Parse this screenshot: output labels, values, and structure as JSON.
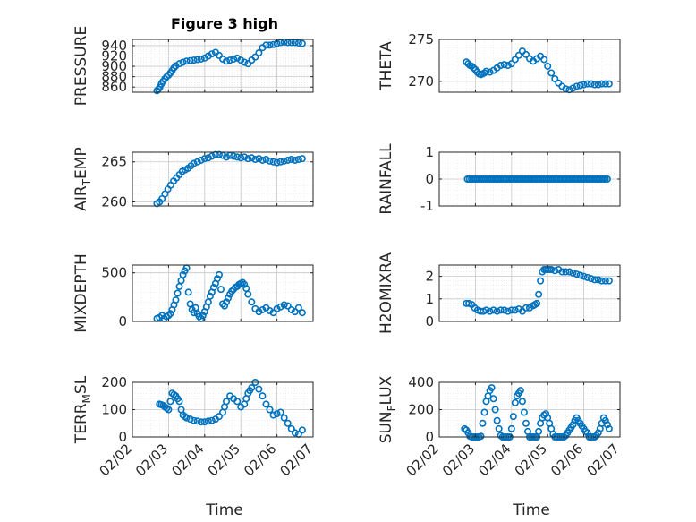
{
  "figure": {
    "title": "Figure 3 high",
    "xlabel": "Time"
  },
  "colors": {
    "marker": "#0072BD",
    "axis": "#262626",
    "grid": "#c8c8c8"
  },
  "chart_data": [
    {
      "type": "scatter",
      "id": "pressure",
      "ylabel": "PRESSURE",
      "title": "Figure 3 high",
      "ylim": [
        850,
        952
      ],
      "yticks": [
        860,
        880,
        900,
        920,
        940
      ],
      "ytick_labels": [
        "860",
        "880",
        "900",
        "920",
        "940"
      ],
      "xlim": [
        0,
        5
      ],
      "xticks": [
        0,
        1,
        2,
        3,
        4,
        5
      ],
      "xtick_labels": [
        "02/02",
        "02/03",
        "02/04",
        "02/05",
        "02/06",
        "02/07"
      ],
      "x": [
        0.68,
        0.72,
        0.76,
        0.8,
        0.85,
        0.9,
        0.95,
        1.0,
        1.05,
        1.1,
        1.15,
        1.2,
        1.3,
        1.4,
        1.5,
        1.6,
        1.7,
        1.8,
        1.9,
        2.0,
        2.1,
        2.2,
        2.3,
        2.4,
        2.5,
        2.6,
        2.7,
        2.8,
        2.9,
        3.0,
        3.1,
        3.2,
        3.3,
        3.4,
        3.5,
        3.6,
        3.7,
        3.8,
        3.9,
        4.0,
        4.1,
        4.2,
        4.3,
        4.4,
        4.5,
        4.6,
        4.7
      ],
      "y": [
        853,
        856,
        860,
        866,
        871,
        876,
        880,
        883,
        887,
        892,
        897,
        901,
        905,
        908,
        910,
        911,
        912,
        913,
        914,
        916,
        920,
        924,
        927,
        921,
        914,
        910,
        912,
        914,
        916,
        912,
        908,
        905,
        912,
        918,
        926,
        936,
        941,
        941,
        942,
        944,
        946,
        947,
        946,
        946,
        946,
        945,
        944
      ]
    },
    {
      "type": "scatter",
      "id": "theta",
      "ylabel": "THETA",
      "ylim": [
        268.7,
        275
      ],
      "yticks": [
        270,
        275
      ],
      "ytick_labels": [
        "270",
        "275"
      ],
      "xlim": [
        0,
        5
      ],
      "xticks": [
        0,
        1,
        2,
        3,
        4,
        5
      ],
      "xtick_labels": [
        "02/02",
        "02/03",
        "02/04",
        "02/05",
        "02/06",
        "02/07"
      ],
      "x": [
        0.75,
        0.8,
        0.85,
        0.9,
        0.95,
        1.0,
        1.05,
        1.1,
        1.15,
        1.2,
        1.25,
        1.3,
        1.4,
        1.5,
        1.6,
        1.7,
        1.8,
        1.9,
        2.0,
        2.1,
        2.2,
        2.3,
        2.4,
        2.5,
        2.6,
        2.7,
        2.8,
        2.9,
        3.0,
        3.1,
        3.2,
        3.3,
        3.4,
        3.5,
        3.6,
        3.7,
        3.8,
        3.9,
        4.0,
        4.1,
        4.2,
        4.3,
        4.4,
        4.5,
        4.6,
        4.7
      ],
      "y": [
        272.3,
        272.1,
        271.9,
        271.8,
        271.6,
        271.4,
        271.1,
        270.9,
        270.8,
        270.9,
        271.0,
        271.2,
        271.1,
        271.3,
        271.6,
        271.9,
        272.0,
        271.9,
        272.1,
        272.6,
        273.1,
        273.6,
        273.2,
        272.7,
        272.4,
        272.7,
        273.0,
        272.6,
        271.8,
        271.0,
        270.3,
        269.8,
        269.4,
        269.1,
        269.0,
        269.2,
        269.4,
        269.5,
        269.6,
        269.7,
        269.7,
        269.6,
        269.6,
        269.7,
        269.7,
        269.7
      ]
    },
    {
      "type": "scatter",
      "id": "air_temp",
      "ylabel": "AIR_TEMP",
      "ylabel_main": "AIR",
      "ylabel_sub": "T",
      "ylabel_rest": "EMP",
      "ylim": [
        259.5,
        266.2
      ],
      "yticks": [
        260,
        265
      ],
      "ytick_labels": [
        "260",
        "265"
      ],
      "xlim": [
        0,
        5
      ],
      "xticks": [
        0,
        1,
        2,
        3,
        4,
        5
      ],
      "xtick_labels": [
        "02/02",
        "02/03",
        "02/04",
        "02/05",
        "02/06",
        "02/07"
      ],
      "x": [
        0.68,
        0.75,
        0.82,
        0.9,
        0.98,
        1.06,
        1.14,
        1.22,
        1.3,
        1.38,
        1.46,
        1.54,
        1.62,
        1.7,
        1.8,
        1.9,
        2.0,
        2.1,
        2.2,
        2.3,
        2.4,
        2.5,
        2.6,
        2.7,
        2.8,
        2.9,
        3.0,
        3.1,
        3.2,
        3.3,
        3.4,
        3.5,
        3.6,
        3.7,
        3.8,
        3.9,
        4.0,
        4.1,
        4.2,
        4.3,
        4.4,
        4.5,
        4.6,
        4.7
      ],
      "y": [
        259.8,
        260.0,
        260.4,
        261.0,
        261.6,
        262.1,
        262.6,
        263.0,
        263.4,
        263.8,
        264.0,
        264.2,
        264.5,
        264.8,
        265.0,
        265.2,
        265.4,
        265.5,
        265.7,
        265.9,
        265.9,
        265.8,
        265.6,
        265.8,
        265.7,
        265.6,
        265.5,
        265.6,
        265.4,
        265.5,
        265.3,
        265.4,
        265.2,
        265.3,
        265.1,
        265.0,
        264.9,
        265.0,
        265.1,
        265.2,
        265.3,
        265.2,
        265.3,
        265.4
      ]
    },
    {
      "type": "scatter",
      "id": "rainfall",
      "ylabel": "RAINFALL",
      "ylim": [
        -1,
        1
      ],
      "yticks": [
        -1,
        0,
        1
      ],
      "ytick_labels": [
        "-1",
        "0",
        "1"
      ],
      "xlim": [
        0,
        5
      ],
      "xticks": [
        0,
        1,
        2,
        3,
        4,
        5
      ],
      "xtick_labels": [
        "02/02",
        "02/03",
        "02/04",
        "02/05",
        "02/06",
        "02/07"
      ],
      "x_range": [
        0.78,
        4.65
      ],
      "x_count": 70,
      "value": 0
    },
    {
      "type": "scatter",
      "id": "mixdepth",
      "ylabel": "MIXDEPTH",
      "ylim": [
        0,
        580
      ],
      "yticks": [
        0,
        500
      ],
      "ytick_labels": [
        "0",
        "500"
      ],
      "xlim": [
        0,
        5
      ],
      "xticks": [
        0,
        1,
        2,
        3,
        4,
        5
      ],
      "xtick_labels": [
        "02/02",
        "02/03",
        "02/04",
        "02/05",
        "02/06",
        "02/07"
      ],
      "x": [
        0.68,
        0.75,
        0.82,
        0.88,
        0.94,
        1.0,
        1.05,
        1.1,
        1.15,
        1.2,
        1.25,
        1.3,
        1.35,
        1.4,
        1.45,
        1.5,
        1.55,
        1.6,
        1.65,
        1.7,
        1.75,
        1.8,
        1.85,
        1.9,
        1.95,
        2.0,
        2.05,
        2.1,
        2.15,
        2.2,
        2.25,
        2.3,
        2.35,
        2.4,
        2.45,
        2.5,
        2.55,
        2.6,
        2.65,
        2.7,
        2.75,
        2.8,
        2.85,
        2.9,
        2.95,
        3.0,
        3.05,
        3.1,
        3.15,
        3.2,
        3.3,
        3.4,
        3.5,
        3.6,
        3.7,
        3.8,
        3.9,
        4.0,
        4.1,
        4.2,
        4.3,
        4.4,
        4.5,
        4.6,
        4.7
      ],
      "y": [
        30,
        40,
        60,
        30,
        50,
        60,
        80,
        120,
        170,
        220,
        290,
        360,
        420,
        480,
        520,
        550,
        300,
        180,
        120,
        90,
        140,
        80,
        50,
        30,
        60,
        100,
        150,
        200,
        260,
        300,
        350,
        390,
        440,
        480,
        330,
        180,
        160,
        200,
        240,
        280,
        310,
        330,
        350,
        360,
        380,
        390,
        400,
        380,
        340,
        280,
        200,
        130,
        100,
        120,
        140,
        110,
        90,
        130,
        150,
        170,
        160,
        120,
        100,
        140,
        90
      ]
    },
    {
      "type": "scatter",
      "id": "h2omixra",
      "ylabel": "H2OMIXRA",
      "ylim": [
        0,
        2.5
      ],
      "yticks": [
        0,
        1,
        2
      ],
      "ytick_labels": [
        "0",
        "1",
        "2"
      ],
      "xlim": [
        0,
        5
      ],
      "xticks": [
        0,
        1,
        2,
        3,
        4,
        5
      ],
      "xtick_labels": [
        "02/02",
        "02/03",
        "02/04",
        "02/05",
        "02/06",
        "02/07"
      ],
      "x": [
        0.75,
        0.82,
        0.9,
        0.98,
        1.06,
        1.14,
        1.22,
        1.3,
        1.4,
        1.5,
        1.6,
        1.7,
        1.8,
        1.9,
        2.0,
        2.1,
        2.2,
        2.3,
        2.4,
        2.5,
        2.6,
        2.65,
        2.7,
        2.75,
        2.8,
        2.85,
        2.9,
        2.95,
        3.0,
        3.05,
        3.1,
        3.2,
        3.3,
        3.4,
        3.5,
        3.6,
        3.7,
        3.8,
        3.9,
        4.0,
        4.1,
        4.2,
        4.3,
        4.4,
        4.5,
        4.6,
        4.7
      ],
      "y": [
        0.8,
        0.8,
        0.75,
        0.6,
        0.5,
        0.45,
        0.45,
        0.5,
        0.45,
        0.5,
        0.45,
        0.5,
        0.5,
        0.45,
        0.5,
        0.5,
        0.55,
        0.45,
        0.6,
        0.6,
        0.7,
        0.75,
        0.8,
        1.2,
        1.8,
        2.2,
        2.3,
        2.3,
        2.3,
        2.3,
        2.3,
        2.25,
        2.3,
        2.2,
        2.2,
        2.2,
        2.15,
        2.1,
        2.05,
        2.0,
        1.95,
        1.9,
        1.85,
        1.85,
        1.8,
        1.8,
        1.8
      ]
    },
    {
      "type": "scatter",
      "id": "terr_msl",
      "ylabel": "TERR_MSL",
      "ylabel_main": "TERR",
      "ylabel_sub": "M",
      "ylabel_rest": "SL",
      "ylim": [
        0,
        200
      ],
      "yticks": [
        0,
        100,
        200
      ],
      "ytick_labels": [
        "0",
        "100",
        "200"
      ],
      "xlim": [
        0,
        5
      ],
      "xticks": [
        0,
        1,
        2,
        3,
        4,
        5
      ],
      "xtick_labels": [
        "02/02",
        "02/03",
        "02/04",
        "02/05",
        "02/06",
        "02/07"
      ],
      "x": [
        0.75,
        0.8,
        0.85,
        0.9,
        0.95,
        1.0,
        1.05,
        1.1,
        1.15,
        1.2,
        1.25,
        1.3,
        1.35,
        1.4,
        1.45,
        1.5,
        1.6,
        1.7,
        1.8,
        1.9,
        2.0,
        2.1,
        2.2,
        2.3,
        2.4,
        2.5,
        2.55,
        2.6,
        2.7,
        2.8,
        2.9,
        3.0,
        3.1,
        3.15,
        3.2,
        3.25,
        3.3,
        3.4,
        3.5,
        3.6,
        3.7,
        3.8,
        3.9,
        4.0,
        4.1,
        4.2,
        4.3,
        4.4,
        4.5,
        4.6,
        4.7
      ],
      "y": [
        120,
        118,
        115,
        110,
        105,
        100,
        130,
        160,
        155,
        150,
        140,
        130,
        100,
        80,
        75,
        70,
        65,
        60,
        58,
        55,
        55,
        58,
        60,
        65,
        75,
        90,
        110,
        130,
        150,
        140,
        130,
        110,
        120,
        140,
        160,
        170,
        180,
        200,
        175,
        150,
        120,
        100,
        80,
        85,
        90,
        70,
        50,
        30,
        15,
        10,
        25
      ]
    },
    {
      "type": "scatter",
      "id": "sun_flux",
      "ylabel": "SUN_FLUX",
      "ylabel_main": "SUN",
      "ylabel_sub": "F",
      "ylabel_rest": "LUX",
      "ylim": [
        0,
        400
      ],
      "yticks": [
        0,
        200,
        400
      ],
      "ytick_labels": [
        "0",
        "200",
        "400"
      ],
      "xlim": [
        0,
        5
      ],
      "xticks": [
        0,
        1,
        2,
        3,
        4,
        5
      ],
      "xtick_labels": [
        "02/02",
        "02/03",
        "02/04",
        "02/05",
        "02/06",
        "02/07"
      ],
      "x": [
        0.7,
        0.75,
        0.8,
        0.85,
        0.9,
        0.95,
        1.0,
        1.05,
        1.1,
        1.15,
        1.2,
        1.25,
        1.3,
        1.35,
        1.4,
        1.45,
        1.5,
        1.55,
        1.6,
        1.65,
        1.7,
        1.75,
        1.8,
        1.85,
        1.9,
        1.95,
        2.0,
        2.05,
        2.1,
        2.15,
        2.2,
        2.25,
        2.3,
        2.35,
        2.4,
        2.45,
        2.5,
        2.55,
        2.6,
        2.65,
        2.7,
        2.75,
        2.8,
        2.85,
        2.9,
        2.95,
        3.0,
        3.05,
        3.1,
        3.15,
        3.2,
        3.25,
        3.3,
        3.35,
        3.4,
        3.45,
        3.5,
        3.55,
        3.6,
        3.65,
        3.7,
        3.75,
        3.8,
        3.85,
        3.9,
        3.95,
        4.0,
        4.05,
        4.1,
        4.15,
        4.2,
        4.25,
        4.3,
        4.35,
        4.4,
        4.45,
        4.5,
        4.55,
        4.6,
        4.65,
        4.7
      ],
      "y": [
        60,
        50,
        30,
        5,
        0,
        0,
        0,
        0,
        0,
        5,
        100,
        180,
        260,
        300,
        340,
        360,
        280,
        200,
        120,
        60,
        10,
        0,
        0,
        0,
        0,
        0,
        60,
        150,
        250,
        300,
        320,
        340,
        260,
        180,
        100,
        40,
        0,
        0,
        0,
        0,
        0,
        40,
        100,
        140,
        160,
        170,
        140,
        100,
        60,
        20,
        0,
        0,
        0,
        0,
        0,
        0,
        10,
        30,
        50,
        70,
        90,
        120,
        140,
        120,
        100,
        80,
        60,
        40,
        30,
        0,
        0,
        0,
        0,
        10,
        30,
        60,
        100,
        140,
        120,
        90,
        60
      ]
    }
  ]
}
